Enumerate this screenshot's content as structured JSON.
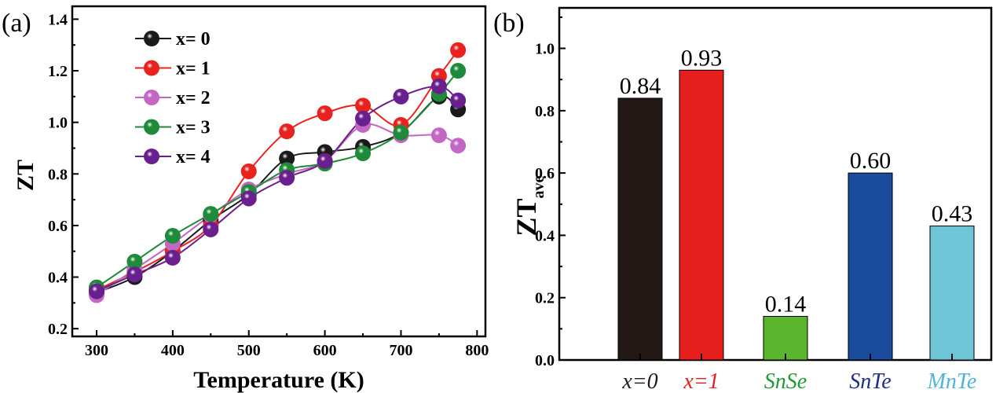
{
  "chart_data": [
    {
      "panel_label": "(a)",
      "type": "line",
      "xlabel": "Temperature (K)",
      "ylabel": "ZT",
      "xlim": [
        268,
        811
      ],
      "ylim": [
        0.17,
        1.45
      ],
      "xticks": [
        300,
        400,
        500,
        600,
        700,
        800
      ],
      "yticks": [
        0.2,
        0.4,
        0.6,
        0.8,
        1.0,
        1.2,
        1.4
      ],
      "ytick_labels": [
        "0.2",
        "0.4",
        "0.6",
        "0.8",
        "1.0",
        "1.2",
        "1.4"
      ],
      "grid": false,
      "legend_position": "top-left",
      "x": [
        300,
        350,
        400,
        450,
        500,
        550,
        600,
        650,
        700,
        750,
        775
      ],
      "series": [
        {
          "name": "x= 0",
          "color": "#1a1a1a",
          "values": [
            0.34,
            0.4,
            0.5,
            0.62,
            0.72,
            0.86,
            0.885,
            0.905,
            0.96,
            1.1,
            1.05
          ]
        },
        {
          "name": "x= 1",
          "color": "#e8231f",
          "values": [
            0.35,
            0.42,
            0.5,
            0.6,
            0.81,
            0.965,
            1.035,
            1.065,
            0.99,
            1.18,
            1.28
          ]
        },
        {
          "name": "x= 2",
          "color": "#c268c4",
          "values": [
            0.33,
            0.43,
            0.53,
            0.64,
            0.74,
            0.8,
            0.85,
            0.99,
            0.95,
            0.95,
            0.91
          ]
        },
        {
          "name": "x= 3",
          "color": "#1f8a3a",
          "values": [
            0.36,
            0.46,
            0.56,
            0.645,
            0.73,
            0.815,
            0.84,
            0.88,
            0.96,
            1.11,
            1.2
          ]
        },
        {
          "name": "x= 4",
          "color": "#6a1f8e",
          "values": [
            0.345,
            0.41,
            0.475,
            0.585,
            0.705,
            0.785,
            0.85,
            1.015,
            1.1,
            1.14,
            1.085
          ]
        }
      ]
    },
    {
      "panel_label": "(b)",
      "type": "bar",
      "ylabel": "ZT",
      "ylabel_sub": "ave",
      "ylim": [
        0.0,
        1.13
      ],
      "yticks": [
        0.0,
        0.2,
        0.4,
        0.6,
        0.8,
        1.0
      ],
      "ytick_labels": [
        "0.0",
        "0.2",
        "0.4",
        "0.6",
        "0.8",
        "1.0"
      ],
      "grid": false,
      "categories": [
        "x=0",
        "x=1",
        "SnSe",
        "SnTe",
        "MnTe"
      ],
      "values": [
        0.84,
        0.93,
        0.14,
        0.6,
        0.43
      ],
      "value_labels": [
        "0.84",
        "0.93",
        "0.14",
        "0.60",
        "0.43"
      ],
      "colors": [
        "#231815",
        "#e61e1e",
        "#5ab52d",
        "#1b4b9b",
        "#6ec5d8"
      ],
      "label_colors": [
        "#231815",
        "#e61e1e",
        "#1f9a3a",
        "#1b2f8a",
        "#4fb5d6"
      ]
    }
  ]
}
